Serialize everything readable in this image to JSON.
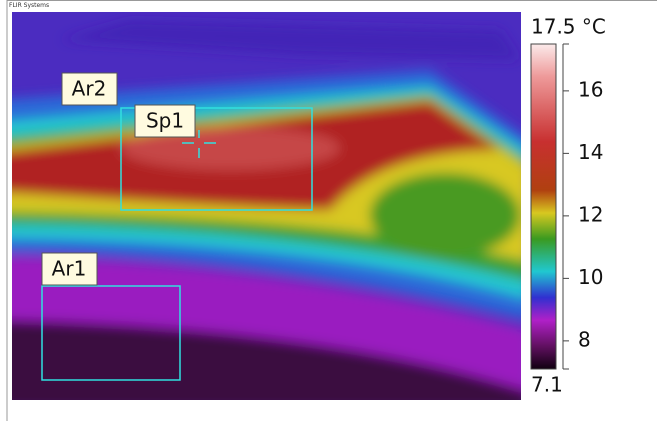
{
  "header": {
    "brand": "FLIR Systems"
  },
  "regions": {
    "ar2": "Ar2",
    "sp1": "Sp1",
    "ar1": "Ar1"
  },
  "colorbar": {
    "lim": [
      7.1,
      17.5
    ],
    "ticks": [
      {
        "value": 17.5,
        "label": "17.5 °C"
      },
      16,
      14,
      12,
      10,
      8,
      7.1
    ]
  }
}
